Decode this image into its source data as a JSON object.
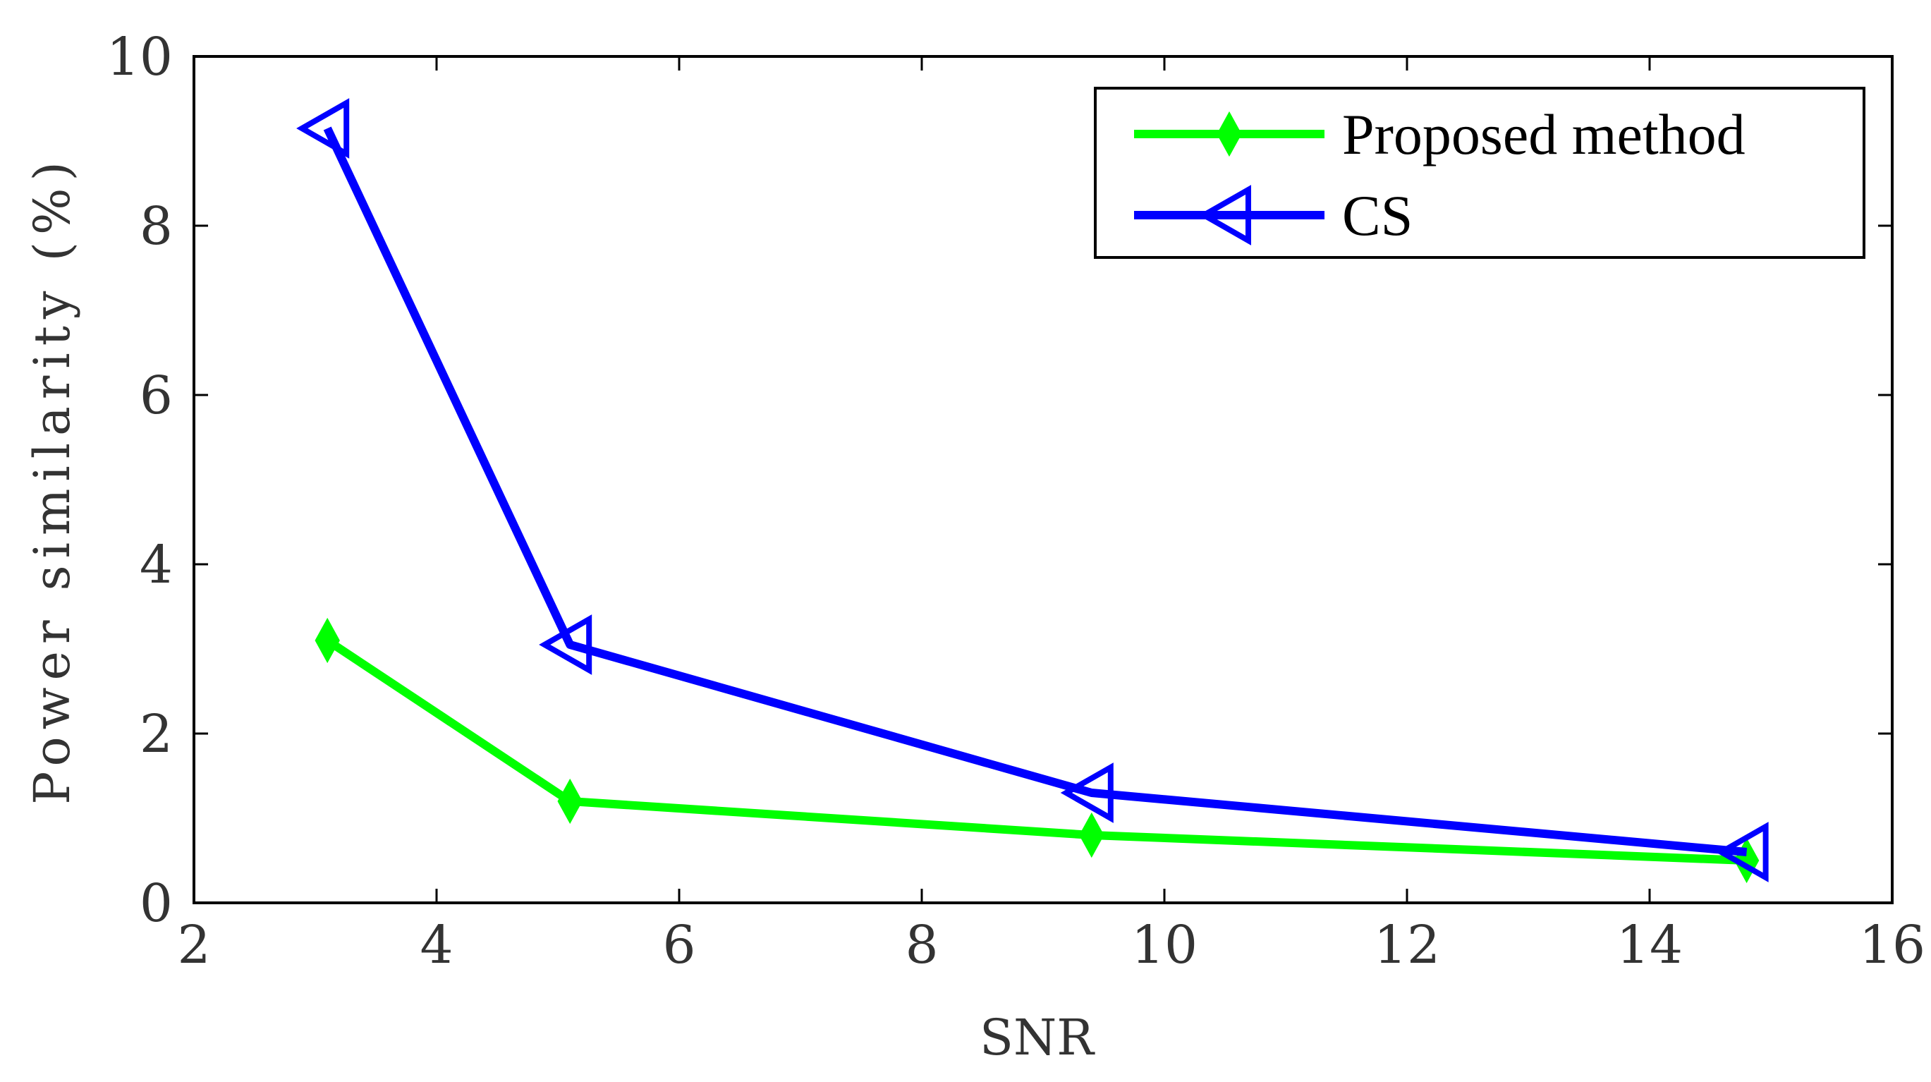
{
  "chart_data": {
    "type": "line",
    "title": "",
    "xlabel": "SNR",
    "ylabel": "Power similarity (%)",
    "xlim": [
      2,
      16
    ],
    "ylim": [
      0,
      10
    ],
    "xticks": [
      "2",
      "4",
      "6",
      "8",
      "10",
      "12",
      "14",
      "16"
    ],
    "yticks": [
      "0",
      "2",
      "4",
      "6",
      "8",
      "10"
    ],
    "grid": false,
    "legend_position": "top-right",
    "series": [
      {
        "name": "Proposed method",
        "color": "#00ff00",
        "marker": "diamond",
        "x": [
          3.1,
          5.1,
          9.4,
          14.8
        ],
        "y": [
          3.1,
          1.2,
          0.8,
          0.5
        ]
      },
      {
        "name": "CS",
        "color": "#0000ff",
        "marker": "triangle-left",
        "x": [
          3.1,
          5.1,
          9.4,
          14.8
        ],
        "y": [
          9.15,
          3.05,
          1.3,
          0.6
        ]
      }
    ]
  }
}
